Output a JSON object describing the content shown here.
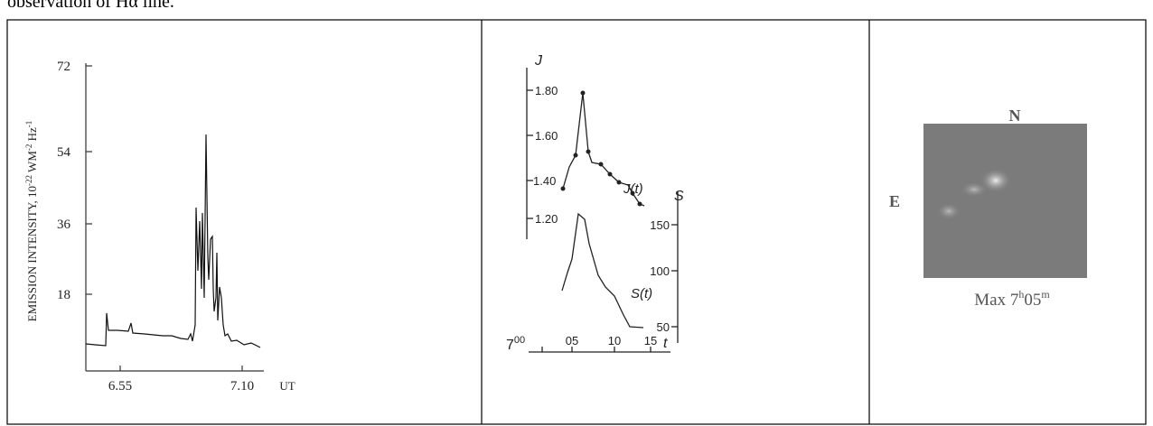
{
  "header": {
    "text": "observation of Hα line."
  },
  "figures": [
    {
      "y_axis_label": [
        "EMISSION INTENSITY, 10",
        "-22",
        " WM",
        "-2",
        " Hz",
        "-1"
      ],
      "y_tick_labels": [
        "72",
        "54",
        "36",
        "18"
      ],
      "x_tick_labels": [
        "6.55",
        "7.10"
      ],
      "x_unit": "UT"
    },
    {
      "left_axis_label": "J",
      "left_tick_labels": [
        "1.80",
        "1.60",
        "1.40",
        "1.20"
      ],
      "right_axis_label": "S",
      "right_tick_labels": [
        "150",
        "100",
        "50"
      ],
      "curve_labels": [
        "J(t)",
        "S(t)"
      ],
      "x_tick_labels": [
        [
          "7",
          "00"
        ],
        "05",
        "10",
        "15"
      ],
      "x_unit": "t"
    },
    {
      "north": "N",
      "east": "E",
      "caption": [
        "Max 7",
        "h",
        "05",
        "m"
      ]
    }
  ]
}
